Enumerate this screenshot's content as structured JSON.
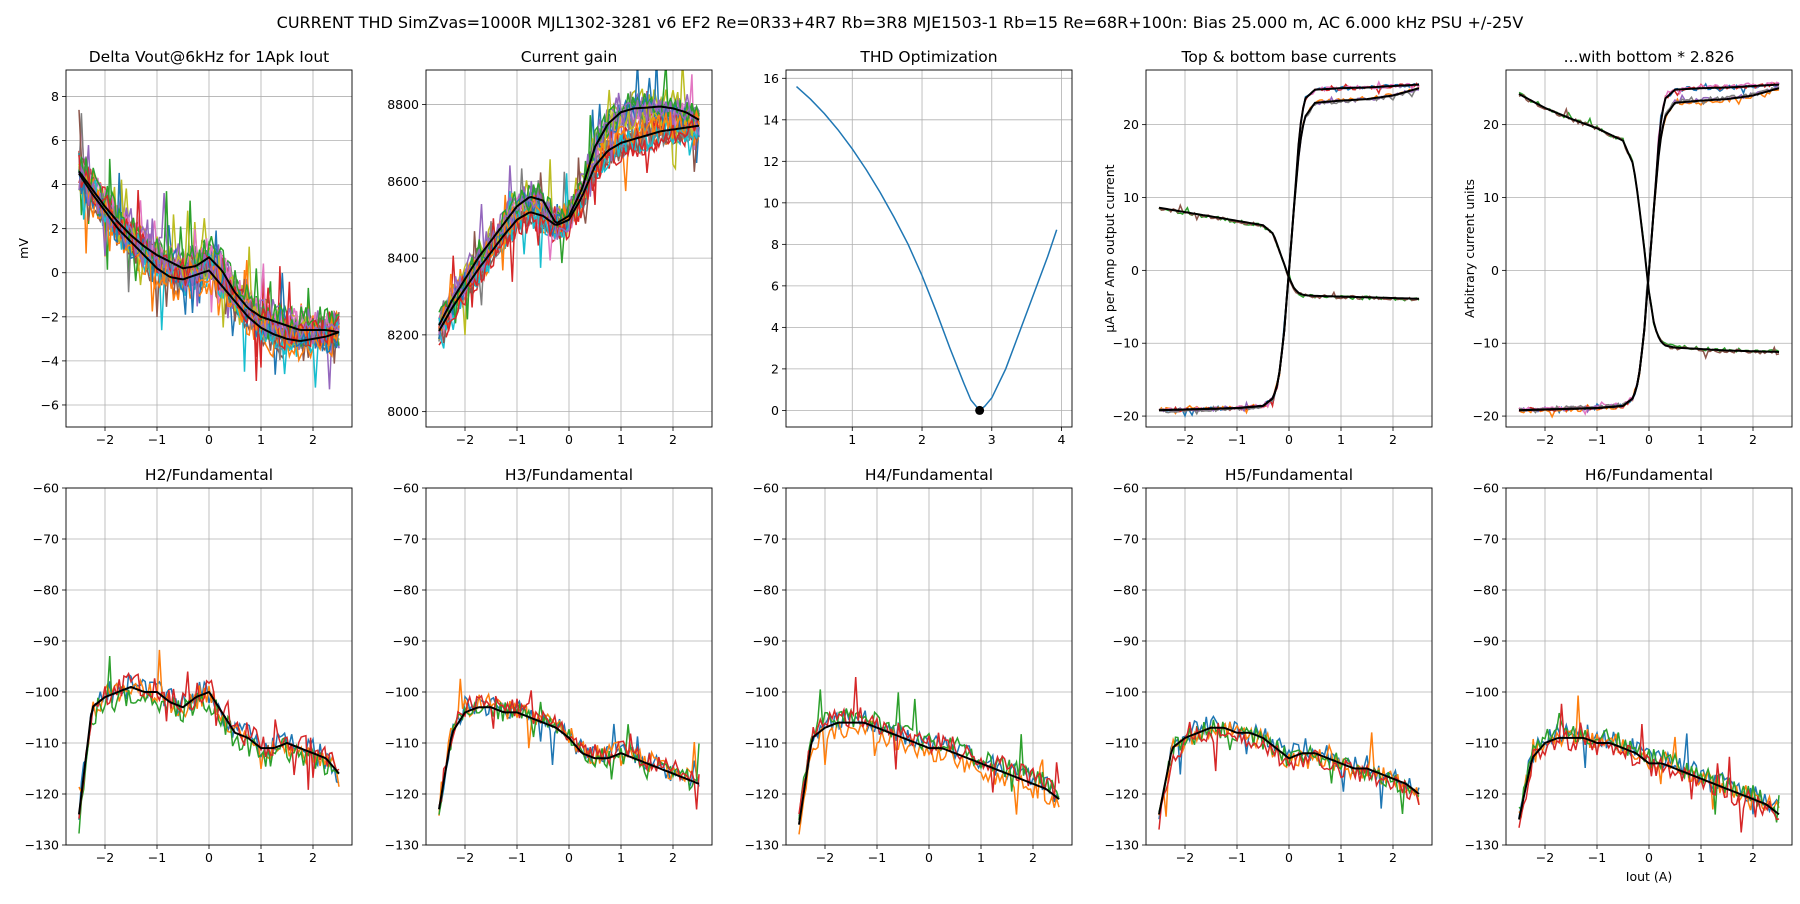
{
  "figure": {
    "suptitle": "CURRENT THD SimZvas=1000R MJL1302-3281 v6 EF2 Re=0R33+4R7 Rb=3R8 MJE1503-1 Rb=15 Re=68R+100n: Bias 25.000 m, AC 6.000 kHz PSU +/-25V"
  },
  "colors": {
    "cycle": [
      "#1f77b4",
      "#ff7f0e",
      "#2ca02c",
      "#d62728",
      "#9467bd",
      "#8c564b",
      "#e377c2",
      "#7f7f7f",
      "#bcbd22",
      "#17becf"
    ],
    "mean": "#000000",
    "grid": "#b0b0b0",
    "optimum_marker": "#000000"
  },
  "chart_data": [
    {
      "id": "delta_vout",
      "type": "line",
      "title": "Delta Vout@6kHz for 1Apk Iout",
      "xlabel": "",
      "ylabel": "mV",
      "xlim": [
        -2.75,
        2.75
      ],
      "ylim": [
        -7.0,
        9.2
      ],
      "xticks": [
        -2,
        -1,
        0,
        1,
        2
      ],
      "yticks": [
        -6,
        -4,
        -2,
        0,
        2,
        4,
        6,
        8
      ],
      "grid": true,
      "x": [
        -2.5,
        -2.25,
        -2.0,
        -1.75,
        -1.5,
        -1.25,
        -1.0,
        -0.75,
        -0.5,
        -0.25,
        0.0,
        0.25,
        0.5,
        0.75,
        1.0,
        1.25,
        1.5,
        1.75,
        2.0,
        2.25,
        2.5
      ],
      "mean_curves": [
        [
          4.6,
          3.8,
          3.0,
          2.3,
          1.7,
          1.2,
          0.8,
          0.5,
          0.2,
          0.3,
          0.7,
          0.1,
          -0.9,
          -1.6,
          -2.0,
          -2.2,
          -2.4,
          -2.6,
          -2.6,
          -2.6,
          -2.7
        ],
        [
          4.5,
          3.6,
          2.8,
          2.0,
          1.4,
          0.8,
          0.2,
          -0.2,
          -0.3,
          -0.1,
          0.1,
          -0.6,
          -1.3,
          -2.0,
          -2.5,
          -2.8,
          -3.0,
          -3.1,
          -3.0,
          -2.9,
          -2.7
        ]
      ],
      "spread": 1.4,
      "n_series": 25
    },
    {
      "id": "current_gain",
      "type": "line",
      "title": "Current gain",
      "xlabel": "",
      "ylabel": "",
      "xlim": [
        -2.75,
        2.75
      ],
      "ylim": [
        7960,
        8890
      ],
      "xticks": [
        -2,
        -1,
        0,
        1,
        2
      ],
      "yticks": [
        8000,
        8200,
        8400,
        8600,
        8800
      ],
      "grid": true,
      "x": [
        -2.5,
        -2.25,
        -2.0,
        -1.75,
        -1.5,
        -1.25,
        -1.0,
        -0.75,
        -0.5,
        -0.25,
        0.0,
        0.25,
        0.5,
        0.75,
        1.0,
        1.25,
        1.5,
        1.75,
        2.0,
        2.25,
        2.5
      ],
      "mean_curves": [
        [
          8225,
          8290,
          8345,
          8400,
          8445,
          8490,
          8535,
          8560,
          8550,
          8490,
          8510,
          8580,
          8690,
          8750,
          8780,
          8790,
          8792,
          8795,
          8790,
          8780,
          8760
        ],
        [
          8210,
          8270,
          8320,
          8370,
          8415,
          8460,
          8500,
          8520,
          8510,
          8485,
          8500,
          8560,
          8640,
          8680,
          8700,
          8710,
          8720,
          8730,
          8735,
          8740,
          8745
        ]
      ],
      "spread": 70,
      "n_series": 25
    },
    {
      "id": "thd_optimization",
      "type": "line",
      "title": "THD Optimization",
      "xlabel": "",
      "ylabel": "",
      "xlim": [
        0.05,
        4.15
      ],
      "ylim": [
        -0.8,
        16.4
      ],
      "xticks": [
        1,
        2,
        3,
        4
      ],
      "yticks": [
        0,
        2,
        4,
        6,
        8,
        10,
        12,
        14,
        16
      ],
      "grid": true,
      "x": [
        0.2,
        0.4,
        0.6,
        0.8,
        1.0,
        1.2,
        1.4,
        1.6,
        1.8,
        2.0,
        2.2,
        2.4,
        2.6,
        2.7,
        2.8,
        2.826,
        2.9,
        3.0,
        3.2,
        3.4,
        3.6,
        3.8,
        3.93
      ],
      "y": [
        15.6,
        15.0,
        14.3,
        13.5,
        12.6,
        11.6,
        10.5,
        9.3,
        8.0,
        6.5,
        4.8,
        3.0,
        1.3,
        0.5,
        0.1,
        0.0,
        0.2,
        0.6,
        2.0,
        3.8,
        5.6,
        7.4,
        8.7
      ],
      "optimum": {
        "x": 2.826,
        "y": 0.0
      }
    },
    {
      "id": "base_currents",
      "type": "line",
      "title": "Top & bottom base currents",
      "xlabel": "",
      "ylabel": "µA per Amp output current",
      "xlim": [
        -2.75,
        2.75
      ],
      "ylim": [
        -21.5,
        27.5
      ],
      "xticks": [
        -2,
        -1,
        0,
        1,
        2
      ],
      "yticks": [
        -20,
        -10,
        0,
        10,
        20
      ],
      "grid": true,
      "x": [
        -2.5,
        -2.0,
        -1.5,
        -1.0,
        -0.5,
        -0.3,
        -0.2,
        -0.1,
        0.0,
        0.1,
        0.2,
        0.3,
        0.5,
        1.0,
        1.5,
        2.0,
        2.5
      ],
      "mean_curves": [
        [
          -19.2,
          -19.1,
          -19.0,
          -18.9,
          -18.6,
          -17.5,
          -15.0,
          -9.0,
          0.0,
          9.0,
          19.0,
          23.5,
          24.8,
          25.0,
          25.1,
          25.3,
          25.5
        ],
        [
          -19.2,
          -19.1,
          -19.0,
          -18.9,
          -18.6,
          -17.5,
          -15.0,
          -9.0,
          0.0,
          9.0,
          17.0,
          21.0,
          23.0,
          23.3,
          23.5,
          24.0,
          25.0
        ],
        [
          8.6,
          8.0,
          7.4,
          6.8,
          6.2,
          5.0,
          3.0,
          1.0,
          -1.0,
          -2.5,
          -3.2,
          -3.4,
          -3.5,
          -3.6,
          -3.7,
          -3.8,
          -3.9
        ]
      ],
      "spread": 0.5,
      "n_series": 8
    },
    {
      "id": "scaled_base_currents",
      "type": "line",
      "title": "...with bottom * 2.826",
      "xlabel": "",
      "ylabel": "Arbitrary current units",
      "xlim": [
        -2.75,
        2.75
      ],
      "ylim": [
        -21.5,
        27.5
      ],
      "xticks": [
        -2,
        -1,
        0,
        1,
        2
      ],
      "yticks": [
        -20,
        -10,
        0,
        10,
        20
      ],
      "grid": true,
      "x": [
        -2.5,
        -2.0,
        -1.5,
        -1.0,
        -0.5,
        -0.3,
        -0.2,
        -0.1,
        0.0,
        0.1,
        0.2,
        0.3,
        0.5,
        1.0,
        1.5,
        2.0,
        2.5
      ],
      "mean_curves": [
        [
          -19.2,
          -19.1,
          -19.0,
          -18.9,
          -18.6,
          -17.5,
          -15.0,
          -9.0,
          0.0,
          9.0,
          19.0,
          23.5,
          24.8,
          25.0,
          25.1,
          25.3,
          25.5
        ],
        [
          -19.2,
          -19.1,
          -19.0,
          -18.9,
          -18.6,
          -17.5,
          -15.0,
          -9.0,
          0.0,
          9.0,
          17.0,
          21.0,
          23.0,
          23.3,
          23.5,
          24.0,
          25.0
        ],
        [
          24.2,
          22.3,
          20.8,
          19.5,
          17.8,
          14.5,
          9.5,
          3.5,
          -3.0,
          -7.5,
          -9.5,
          -10.3,
          -10.6,
          -10.8,
          -11.0,
          -11.1,
          -11.2
        ]
      ],
      "spread": 0.6,
      "n_series": 8
    },
    {
      "id": "h2",
      "type": "line",
      "title": "H2/Fundamental",
      "xlabel": "",
      "ylabel": "",
      "xlim": [
        -2.75,
        2.75
      ],
      "ylim": [
        -130,
        -60
      ],
      "xticks": [
        -2,
        -1,
        0,
        1,
        2
      ],
      "yticks": [
        -130,
        -120,
        -110,
        -100,
        -90,
        -80,
        -70,
        -60
      ],
      "grid": true,
      "x": [
        -2.5,
        -2.25,
        -2.0,
        -1.75,
        -1.5,
        -1.25,
        -1.0,
        -0.75,
        -0.5,
        -0.25,
        0.0,
        0.25,
        0.5,
        0.75,
        1.0,
        1.25,
        1.5,
        1.75,
        2.0,
        2.25,
        2.5
      ],
      "mean_curves": [
        [
          -124,
          -103,
          -101,
          -100,
          -99,
          -100,
          -100,
          -102,
          -103,
          -101,
          -100,
          -104,
          -108,
          -109,
          -111,
          -111,
          -110,
          -111,
          -112,
          -113,
          -116
        ]
      ],
      "spread": 5,
      "n_series": 4
    },
    {
      "id": "h3",
      "type": "line",
      "title": "H3/Fundamental",
      "xlabel": "",
      "ylabel": "",
      "xlim": [
        -2.75,
        2.75
      ],
      "ylim": [
        -130,
        -60
      ],
      "xticks": [
        -2,
        -1,
        0,
        1,
        2
      ],
      "yticks": [
        -130,
        -120,
        -110,
        -100,
        -90,
        -80,
        -70,
        -60
      ],
      "grid": true,
      "x": [
        -2.5,
        -2.25,
        -2.0,
        -1.75,
        -1.5,
        -1.25,
        -1.0,
        -0.75,
        -0.5,
        -0.25,
        0.0,
        0.25,
        0.5,
        0.75,
        1.0,
        1.25,
        1.5,
        1.75,
        2.0,
        2.25,
        2.5
      ],
      "mean_curves": [
        [
          -123,
          -108,
          -104,
          -103,
          -103,
          -104,
          -104,
          -105,
          -106,
          -107,
          -109,
          -112,
          -113,
          -113,
          -112,
          -113,
          -114,
          -115,
          -116,
          -117,
          -118
        ]
      ],
      "spread": 4,
      "n_series": 4
    },
    {
      "id": "h4",
      "type": "line",
      "title": "H4/Fundamental",
      "xlabel": "",
      "ylabel": "",
      "xlim": [
        -2.75,
        2.75
      ],
      "ylim": [
        -130,
        -60
      ],
      "xticks": [
        -2,
        -1,
        0,
        1,
        2
      ],
      "yticks": [
        -130,
        -120,
        -110,
        -100,
        -90,
        -80,
        -70,
        -60
      ],
      "grid": true,
      "x": [
        -2.5,
        -2.25,
        -2.0,
        -1.75,
        -1.5,
        -1.25,
        -1.0,
        -0.75,
        -0.5,
        -0.25,
        0.0,
        0.25,
        0.5,
        0.75,
        1.0,
        1.25,
        1.5,
        1.75,
        2.0,
        2.25,
        2.5
      ],
      "mean_curves": [
        [
          -126,
          -109,
          -107,
          -106,
          -106,
          -106,
          -107,
          -108,
          -109,
          -110,
          -111,
          -111,
          -112,
          -113,
          -114,
          -115,
          -116,
          -117,
          -118,
          -119,
          -121
        ]
      ],
      "spread": 4,
      "n_series": 4
    },
    {
      "id": "h5",
      "type": "line",
      "title": "H5/Fundamental",
      "xlabel": "",
      "ylabel": "",
      "xlim": [
        -2.75,
        2.75
      ],
      "ylim": [
        -130,
        -60
      ],
      "xticks": [
        -2,
        -1,
        0,
        1,
        2
      ],
      "yticks": [
        -130,
        -120,
        -110,
        -100,
        -90,
        -80,
        -70,
        -60
      ],
      "grid": true,
      "x": [
        -2.5,
        -2.25,
        -2.0,
        -1.75,
        -1.5,
        -1.25,
        -1.0,
        -0.75,
        -0.5,
        -0.25,
        0.0,
        0.25,
        0.5,
        0.75,
        1.0,
        1.25,
        1.5,
        1.75,
        2.0,
        2.25,
        2.5
      ],
      "mean_curves": [
        [
          -124,
          -111,
          -109,
          -108,
          -107,
          -107,
          -108,
          -108,
          -109,
          -111,
          -113,
          -112,
          -112,
          -113,
          -114,
          -115,
          -115,
          -116,
          -117,
          -118,
          -120
        ]
      ],
      "spread": 4,
      "n_series": 4
    },
    {
      "id": "h6",
      "type": "line",
      "title": "H6/Fundamental",
      "xlabel": "Iout (A)",
      "ylabel": "",
      "xlim": [
        -2.75,
        2.75
      ],
      "ylim": [
        -130,
        -60
      ],
      "xticks": [
        -2,
        -1,
        0,
        1,
        2
      ],
      "yticks": [
        -130,
        -120,
        -110,
        -100,
        -90,
        -80,
        -70,
        -60
      ],
      "grid": true,
      "x": [
        -2.5,
        -2.25,
        -2.0,
        -1.75,
        -1.5,
        -1.25,
        -1.0,
        -0.75,
        -0.5,
        -0.25,
        0.0,
        0.25,
        0.5,
        0.75,
        1.0,
        1.25,
        1.5,
        1.75,
        2.0,
        2.25,
        2.5
      ],
      "mean_curves": [
        [
          -125,
          -113,
          -110,
          -109,
          -109,
          -109,
          -110,
          -110,
          -111,
          -112,
          -114,
          -114,
          -115,
          -116,
          -117,
          -118,
          -119,
          -120,
          -121,
          -122,
          -124
        ]
      ],
      "spread": 4,
      "n_series": 4
    }
  ]
}
